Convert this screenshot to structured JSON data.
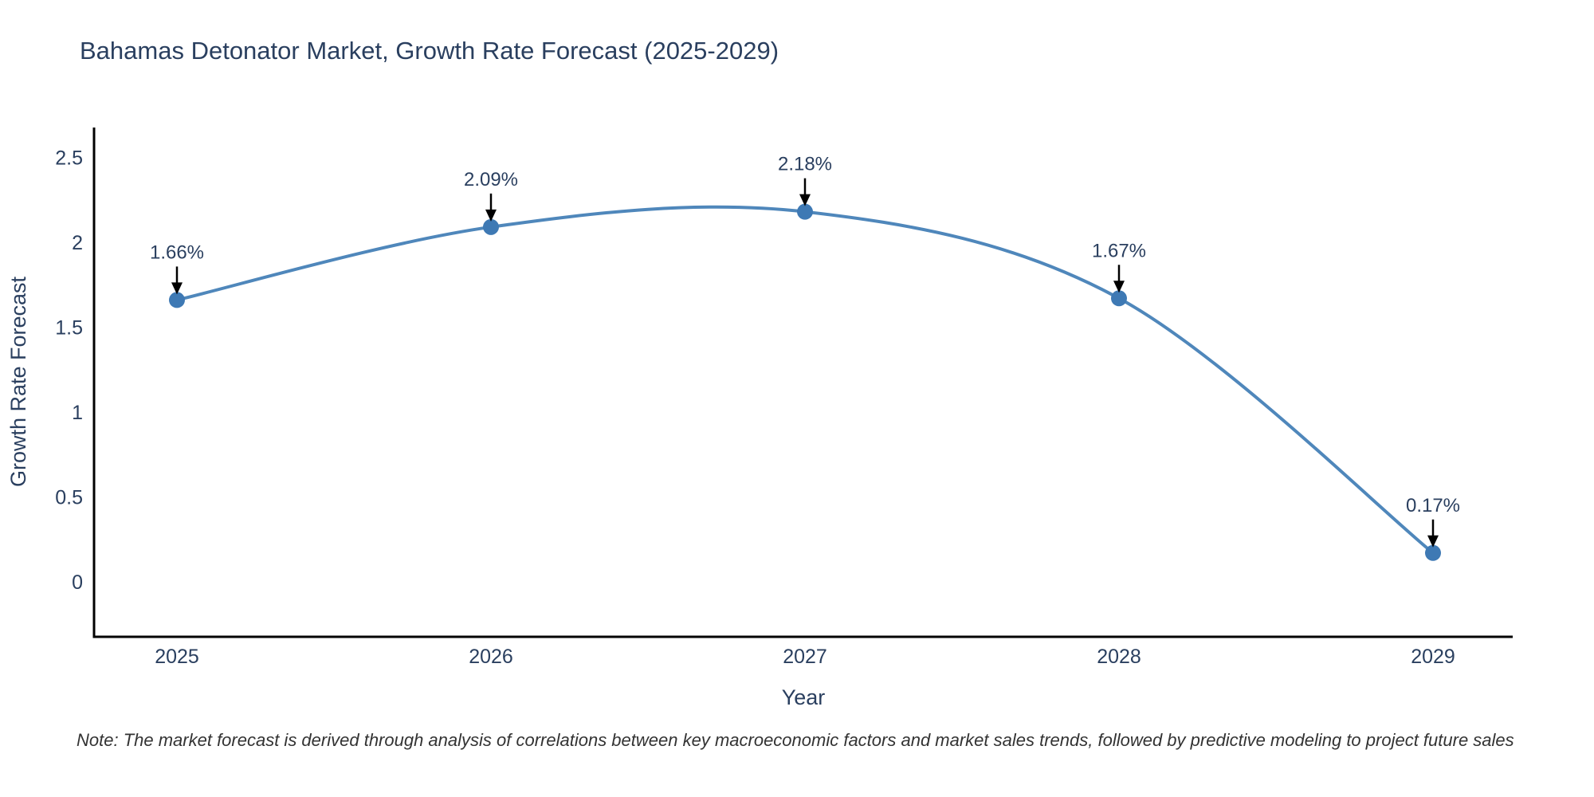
{
  "figure": {
    "background": "#ffffff"
  },
  "chart_data": {
    "type": "line",
    "title": "Bahamas Detonator Market, Growth Rate Forecast (2025-2029)",
    "xlabel": "Year",
    "ylabel": "Growth Rate Forecast",
    "categories": [
      "2025",
      "2026",
      "2027",
      "2028",
      "2029"
    ],
    "series": [
      {
        "name": "Growth Rate Forecast",
        "values": [
          1.66,
          2.09,
          2.18,
          1.67,
          0.17
        ]
      }
    ],
    "point_labels": [
      "1.66%",
      "2.09%",
      "2.18%",
      "1.67%",
      "0.17%"
    ],
    "yticks": [
      0,
      0.5,
      1,
      1.5,
      2,
      2.5
    ],
    "ytick_labels": [
      "0",
      "0.5",
      "1",
      "1.5",
      "2",
      "2.5"
    ],
    "ylim": [
      -0.33,
      2.72
    ],
    "grid": false,
    "legend": "none",
    "line_shape": "spline",
    "annotations_style": "down-arrow-to-point",
    "colors": {
      "line": "#4f87bb",
      "marker": "#3e79b4",
      "axis": "#000000",
      "text": "#2a3f5f",
      "annotation_arrow": "#000000"
    }
  },
  "note": {
    "text": "Note: The market forecast is derived through analysis of correlations between key macroeconomic factors and market sales trends, followed by predictive modeling to project future sales"
  }
}
